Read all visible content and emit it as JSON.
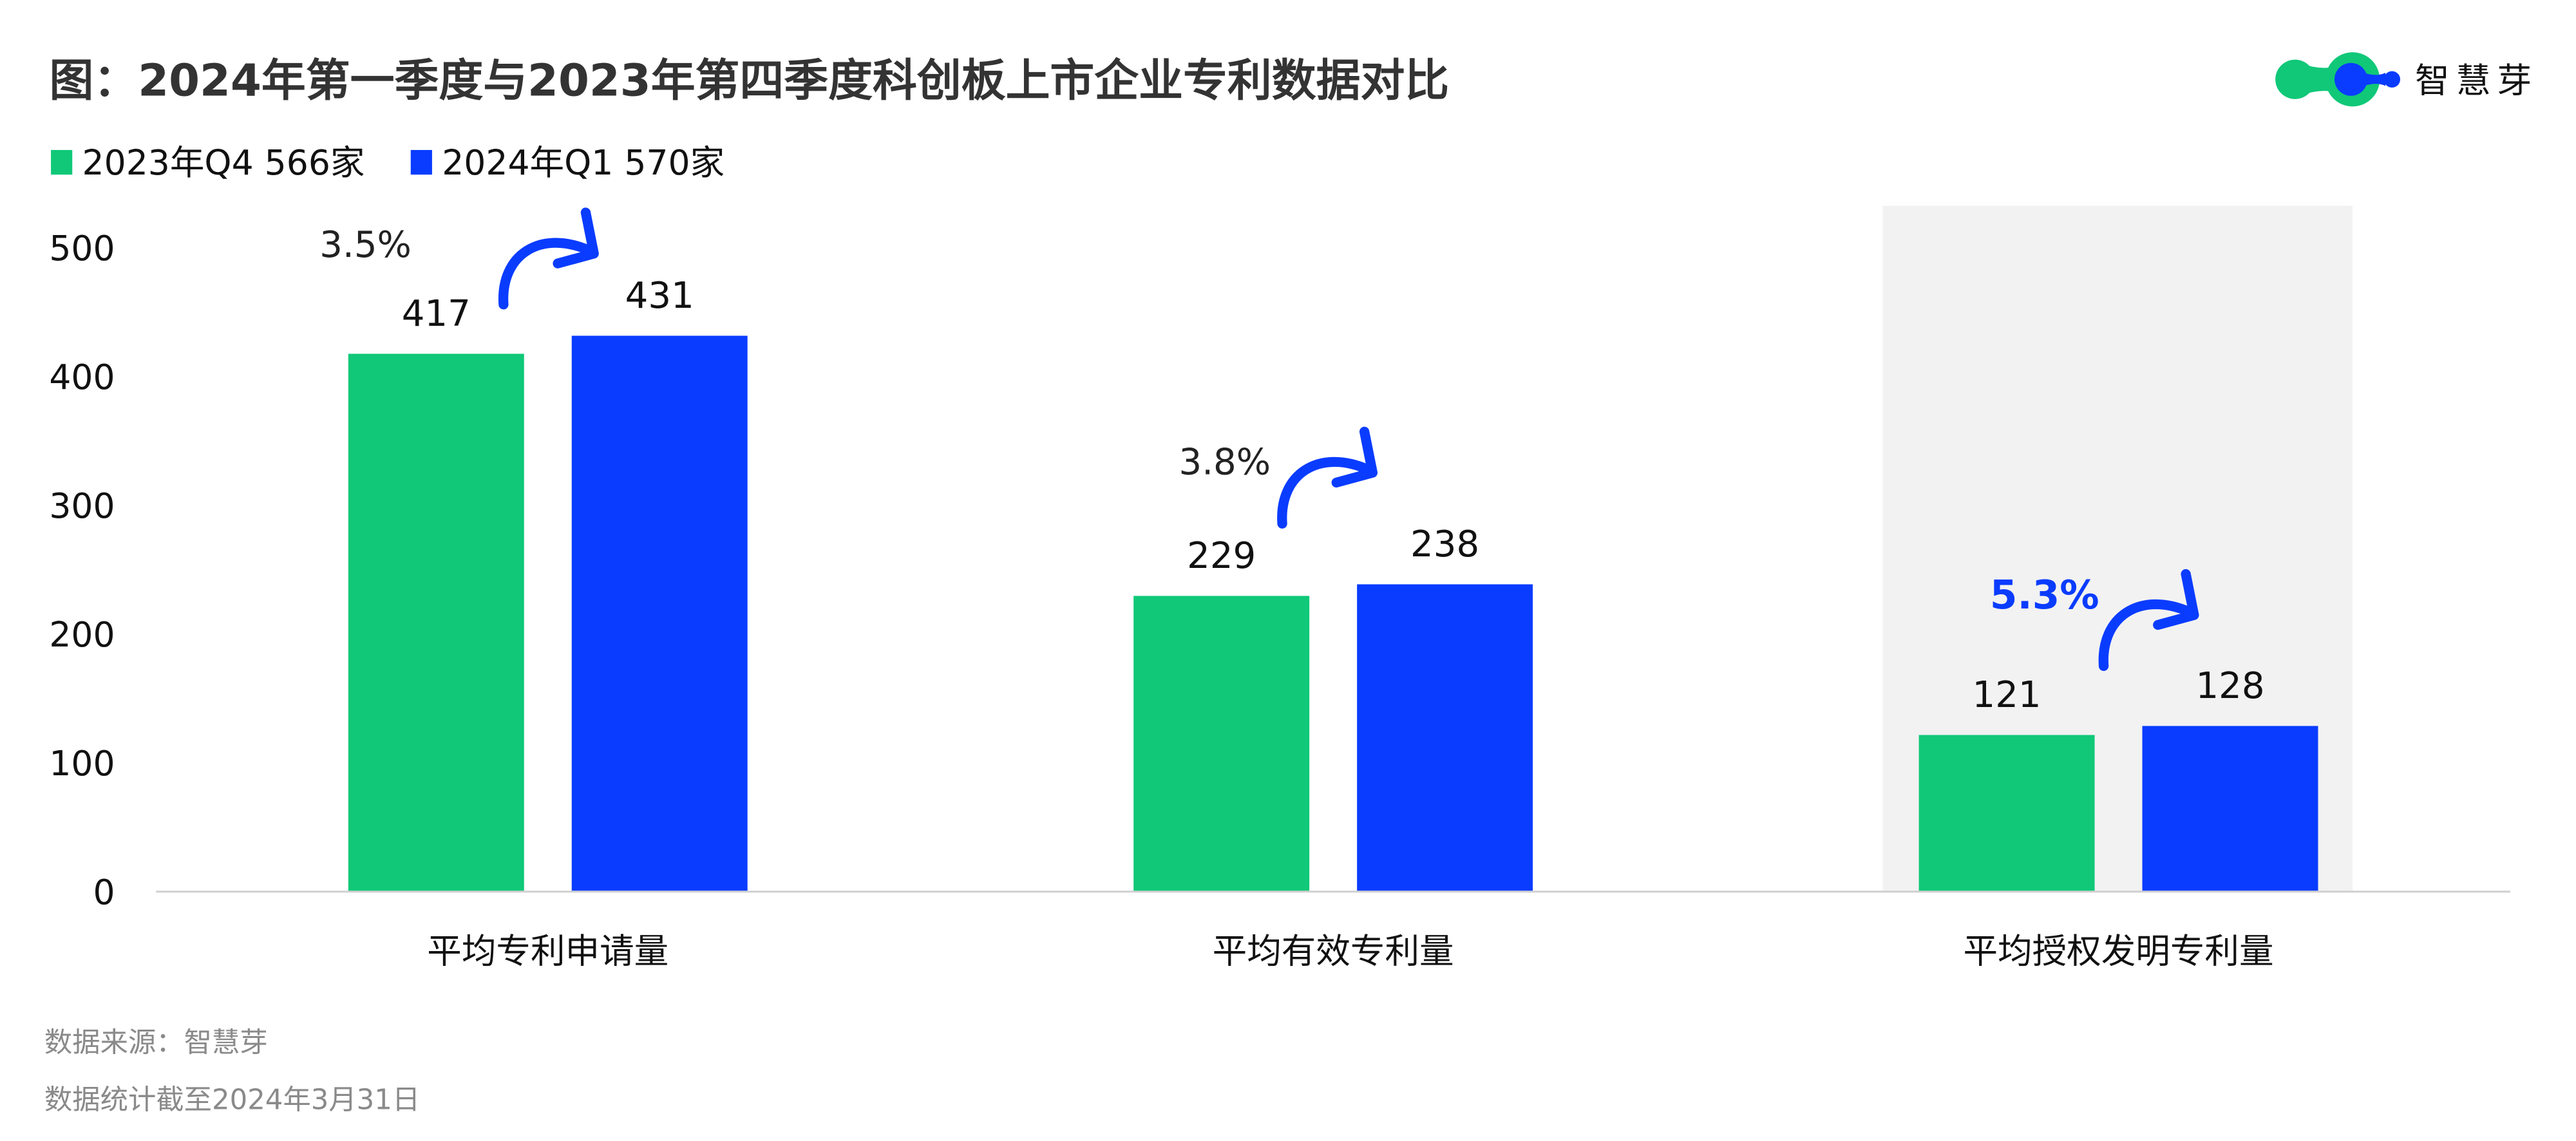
{
  "header": {
    "title": "图：2024年第一季度与2023年第四季度科创板上市企业专利数据对比",
    "logo_text": "智慧芽"
  },
  "colors": {
    "green": "#10c878",
    "blue": "#0a3cff",
    "highlight_bg": "#f2f2f2",
    "axis": "#d0d0d0"
  },
  "chart_data": {
    "type": "bar",
    "title": "图：2024年第一季度与2023年第四季度科创板上市企业专利数据对比",
    "categories": [
      "平均专利申请量",
      "平均有效专利量",
      "平均授权发明专利量"
    ],
    "series": [
      {
        "name": "2023年Q4 566家",
        "values": [
          417,
          229,
          121
        ],
        "color": "#10c878"
      },
      {
        "name": "2024年Q1 570家",
        "values": [
          431,
          238,
          128
        ],
        "color": "#0a3cff"
      }
    ],
    "growth_labels": [
      "3.5%",
      "3.8%",
      "5.3%"
    ],
    "highlighted_category": "平均授权发明专利量",
    "yticks": [
      0,
      100,
      200,
      300,
      400,
      500
    ],
    "ylim": [
      0,
      500
    ],
    "legend_position": "top-left",
    "grid": false
  },
  "footer": {
    "source": "数据来源：智慧芽",
    "note": "数据统计截至2024年3月31日"
  }
}
